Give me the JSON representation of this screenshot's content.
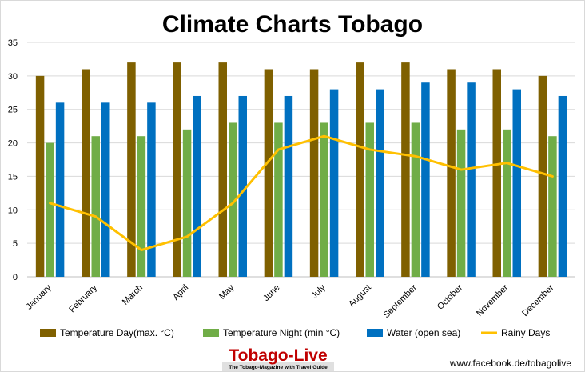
{
  "chart_data": {
    "type": "bar",
    "title": "Climate Charts  Tobago",
    "categories": [
      "January",
      "February",
      "March",
      "April",
      "May",
      "June",
      "July",
      "August",
      "September",
      "October",
      "November",
      "December"
    ],
    "ylim": [
      0,
      35
    ],
    "yticks": [
      0,
      5,
      10,
      15,
      20,
      25,
      30,
      35
    ],
    "grid": true,
    "legend_position": "bottom",
    "series": [
      {
        "name": "Temperature  Day(max. °C)",
        "kind": "bar",
        "color": "#7f6000",
        "values": [
          30,
          31,
          32,
          32,
          32,
          31,
          31,
          32,
          32,
          31,
          31,
          30
        ]
      },
      {
        "name": "Temperature Night (min °C)",
        "kind": "bar",
        "color": "#70ad47",
        "values": [
          20,
          21,
          21,
          22,
          23,
          23,
          23,
          23,
          23,
          22,
          22,
          21
        ]
      },
      {
        "name": "Water (open sea)",
        "kind": "bar",
        "color": "#0070c0",
        "values": [
          26,
          26,
          26,
          27,
          27,
          27,
          28,
          28,
          29,
          29,
          28,
          27
        ]
      },
      {
        "name": "Rainy Days",
        "kind": "line",
        "color": "#ffc000",
        "values": [
          11,
          9,
          4,
          6,
          11,
          19,
          21,
          19,
          18,
          16,
          17,
          15
        ]
      }
    ]
  },
  "footer": {
    "logo_text": "Tobago-Live",
    "logo_tagline": "The Tobago-Magazine with Travel Guide",
    "url": "www.facebook.de/tobagolive"
  }
}
